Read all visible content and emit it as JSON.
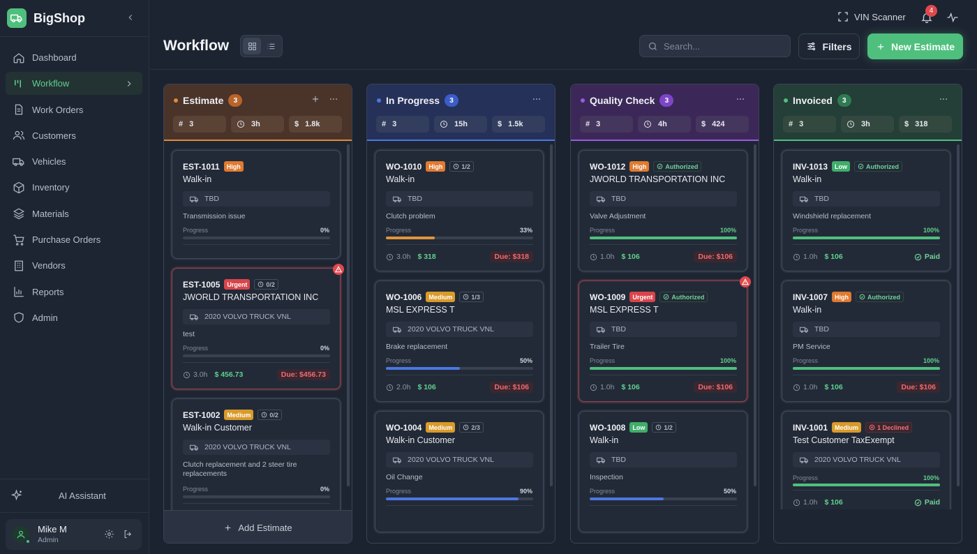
{
  "brand": {
    "name": "BigShop"
  },
  "nav": [
    {
      "label": "Dashboard",
      "icon": "home-icon"
    },
    {
      "label": "Workflow",
      "icon": "workflow-icon",
      "active": true
    },
    {
      "label": "Work Orders",
      "icon": "document-icon"
    },
    {
      "label": "Customers",
      "icon": "users-icon"
    },
    {
      "label": "Vehicles",
      "icon": "truck-icon"
    },
    {
      "label": "Inventory",
      "icon": "box-icon"
    },
    {
      "label": "Materials",
      "icon": "layers-icon"
    },
    {
      "label": "Purchase Orders",
      "icon": "cart-icon"
    },
    {
      "label": "Vendors",
      "icon": "building-icon"
    },
    {
      "label": "Reports",
      "icon": "chart-icon"
    },
    {
      "label": "Admin",
      "icon": "shield-icon"
    }
  ],
  "ai_assistant": "AI Assistant",
  "user": {
    "name": "Mike M",
    "role": "Admin"
  },
  "header": {
    "vin_scanner": "VIN Scanner",
    "notifications": "4",
    "title": "Workflow",
    "search_placeholder": "Search...",
    "filters": "Filters",
    "new_estimate": "New Estimate"
  },
  "colors": {
    "accent": "#4fbf7e",
    "estimate": "#e08a3c",
    "in_progress": "#4a78e0",
    "quality": "#9a5ae0",
    "invoiced": "#4fbf7e"
  },
  "columns": [
    {
      "title": "Estimate",
      "count": "3",
      "stats": {
        "count": "3",
        "hours": "3h",
        "amount": "1.8k"
      },
      "add_label": "Add Estimate",
      "cards": [
        {
          "id": "EST-1011",
          "priority": "High",
          "customer": "Walk-in",
          "vehicle": "TBD",
          "desc": "Transmission issue",
          "progress_label": "Progress",
          "progress": "0%"
        },
        {
          "id": "EST-1005",
          "priority": "Urgent",
          "chip": "0/2",
          "customer": "JWORLD TRANSPORTATION INC",
          "vehicle": "2020 VOLVO TRUCK VNL",
          "desc": "test",
          "progress_label": "Progress",
          "progress": "0%",
          "hours": "3.0h",
          "amount": "$ 456.73",
          "due": "Due: $456.73"
        },
        {
          "id": "EST-1002",
          "priority": "Medium",
          "chip": "0/2",
          "customer": "Walk-in Customer",
          "vehicle": "2020 VOLVO TRUCK VNL",
          "desc": "Clutch replacement and 2 steer tire replacements",
          "progress_label": "Progress",
          "progress": "0%"
        }
      ]
    },
    {
      "title": "In Progress",
      "count": "3",
      "stats": {
        "count": "3",
        "hours": "15h",
        "amount": "1.5k"
      },
      "cards": [
        {
          "id": "WO-1010",
          "priority": "High",
          "chip": "1/2",
          "customer": "Walk-in",
          "vehicle": "TBD",
          "desc": "Clutch problem",
          "progress_label": "Progress",
          "progress": "33%",
          "hours": "3.0h",
          "amount": "$ 318",
          "due": "Due: $318"
        },
        {
          "id": "WO-1006",
          "priority": "Medium",
          "chip": "1/3",
          "customer": "MSL EXPRESS T",
          "vehicle": "2020 VOLVO TRUCK VNL",
          "desc": "Brake replacement",
          "progress_label": "Progress",
          "progress": "50%",
          "hours": "2.0h",
          "amount": "$ 106",
          "due": "Due: $106"
        },
        {
          "id": "WO-1004",
          "priority": "Medium",
          "chip": "2/3",
          "customer": "Walk-in Customer",
          "vehicle": "2020 VOLVO TRUCK VNL",
          "desc": "Oil Change",
          "progress_label": "Progress",
          "progress": "90%"
        }
      ]
    },
    {
      "title": "Quality Check",
      "count": "3",
      "stats": {
        "count": "3",
        "hours": "4h",
        "amount": "424"
      },
      "cards": [
        {
          "id": "WO-1012",
          "priority": "High",
          "status": "Authorized",
          "customer": "JWORLD TRANSPORTATION INC",
          "vehicle": "TBD",
          "desc": "Valve Adjustment",
          "progress_label": "Progress",
          "progress": "100%",
          "hours": "1.0h",
          "amount": "$ 106",
          "due": "Due: $106"
        },
        {
          "id": "WO-1009",
          "priority": "Urgent",
          "status": "Authorized",
          "customer": "MSL EXPRESS T",
          "vehicle": "TBD",
          "desc": "Trailer Tire",
          "progress_label": "Progress",
          "progress": "100%",
          "hours": "1.0h",
          "amount": "$ 106",
          "due": "Due: $106"
        },
        {
          "id": "WO-1008",
          "priority": "Low",
          "chip": "1/2",
          "customer": "Walk-in",
          "vehicle": "TBD",
          "desc": "Inspection",
          "progress_label": "Progress",
          "progress": "50%"
        }
      ]
    },
    {
      "title": "Invoiced",
      "count": "3",
      "stats": {
        "count": "3",
        "hours": "3h",
        "amount": "318"
      },
      "cards": [
        {
          "id": "INV-1013",
          "priority": "Low",
          "status": "Authorized",
          "customer": "Walk-in",
          "vehicle": "TBD",
          "desc": "Windshield replacement",
          "progress_label": "Progress",
          "progress": "100%",
          "hours": "1.0h",
          "amount": "$ 106",
          "paid": "Paid"
        },
        {
          "id": "INV-1007",
          "priority": "High",
          "status": "Authorized",
          "customer": "Walk-in",
          "vehicle": "TBD",
          "desc": "PM Service",
          "progress_label": "Progress",
          "progress": "100%",
          "hours": "1.0h",
          "amount": "$ 106",
          "due": "Due: $106"
        },
        {
          "id": "INV-1001",
          "priority": "Medium",
          "declined": "1 Declined",
          "customer": "Test Customer TaxExempt",
          "vehicle": "2020 VOLVO TRUCK VNL",
          "progress_label": "Progress",
          "progress": "100%",
          "hours": "1.0h",
          "amount": "$ 106",
          "paid": "Paid"
        }
      ]
    }
  ]
}
